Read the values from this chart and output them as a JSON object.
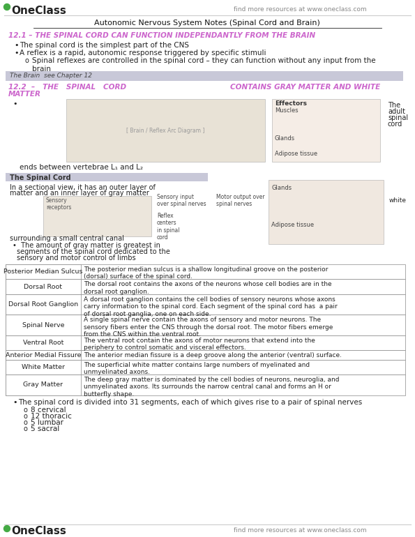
{
  "title": "Autonomic Nervous System Notes (Spinal Cord and Brain)",
  "header_left": "OneClass",
  "header_right": "find more resources at www.oneclass.com",
  "footer_right": "find more resources at www.oneclass.com",
  "section1_heading": "12.1 – THE SPINAL CORD CAN FUNCTION INDEPENDANTLY FROM THE BRAIN",
  "section1_bullets": [
    "The spinal cord is the simplest part of the CNS",
    "A reflex is a rapid, autonomic response triggered by specific stimuli"
  ],
  "section1_sub": "Spinal reflexes are controlled in the spinal cord – they can function without any input from the\nbrain",
  "gray_box_text": "The Brain  see Chapter 12",
  "section2_heading_left": "12.2  –   THE   SPINAL   CORD",
  "section2_heading_right": "CONTAINS GRAY MATTER AND WHITE",
  "section2_heading2": "MATTER",
  "spinal_cord_box_text": "The Spinal Cord",
  "table_rows": [
    [
      "Posterior Median Sulcus",
      "The posterior median sulcus is a shallow longitudinal groove on the posterior\n(dorsal) surface of the spinal cord."
    ],
    [
      "Dorsal Root",
      "The dorsal root contains the axons of the neurons whose cell bodies are in the\ndorsal root ganglion."
    ],
    [
      "Dorsal Root Ganglion",
      "A dorsal root ganglion contains the cell bodies of sensory neurons whose axons\ncarry information to the spinal cord. Each segment of the spinal cord has  a pair\nof dorsal root ganglia, one on each side."
    ],
    [
      "Spinal Nerve",
      "A single spinal nerve contain the axons of sensory and motor neurons. The\nsensory fibers enter the CNS through the dorsal root. The motor fibers emerge\nfrom the CNS within the ventral root."
    ],
    [
      "Ventral Root",
      "The ventral root contain the axons of motor neurons that extend into the\nperiphery to control somatic and visceral effectors."
    ],
    [
      "Anterior Medial Fissure",
      "The anterior median fissure is a deep groove along the anterior (ventral) surface."
    ],
    [
      "White Matter",
      "The superficial white matter contains large numbers of myelinated and\nunmyelinated axons."
    ],
    [
      "Gray Matter",
      "The deep gray matter is dominated by the cell bodies of neurons, neuroglia, and\nunmyelinated axons. Its surrounds the narrow central canal and forms an H or\nbutterfly shape."
    ]
  ],
  "final_bullet": "The spinal cord is divided into 31 segments, each of which gives rise to a pair of spinal nerves",
  "final_sub_bullets": [
    "8 cervical",
    "12 thoracic",
    "5 lumbar",
    "5 sacral"
  ],
  "color_heading1": "#cc66cc",
  "color_heading2": "#cc66cc",
  "color_gray_box_bg": "#c8c8d8",
  "color_spinal_box_bg": "#c8c8d8",
  "color_body": "#222222",
  "color_header_gray": "#888888",
  "color_green": "#44aa44",
  "bg_color": "#ffffff"
}
